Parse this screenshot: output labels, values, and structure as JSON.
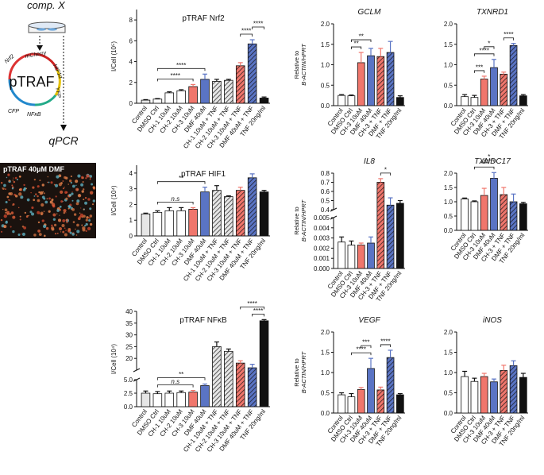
{
  "diagram": {
    "compound": "comp. X",
    "plasmid": "pTRAF",
    "nrf2": "Nrf2",
    "mcherry": "mCherry",
    "hif1": "HIF1α",
    "yfp": "YFP",
    "cfp": "CFP",
    "nfkb": "NFκB",
    "readout": "qPCR",
    "image_label": "pTRAF 40μM DMF"
  },
  "chart_data": [
    {
      "type": "bar",
      "title": "pTRAF Nrf2",
      "y_label": "I/Cell (10⁵)",
      "categories": [
        "Control",
        "DMSO Ctrl",
        "CH-1 10uM",
        "CH-2 10uM",
        "CH-3 10uM",
        "DMF 40uM",
        "CH-1 10uM + TNF",
        "CH-2 10uM + TNF",
        "CH-3 10uM + TNF",
        "DMF 40uM + TNF",
        "TNF 20ng/ml"
      ],
      "values": [
        0.3,
        0.4,
        1.0,
        1.2,
        1.6,
        2.3,
        2.1,
        2.2,
        3.6,
        5.7,
        0.5
      ],
      "errors": [
        0.05,
        0.05,
        0.1,
        0.1,
        0.2,
        0.5,
        0.2,
        0.1,
        0.3,
        0.4,
        0.1
      ],
      "colors": [
        "#e6e6e6",
        "#ffffff",
        "#ffffff",
        "#ffffff",
        "#f0766c",
        "#5a74c4",
        "#e6e6e6",
        "#e6e6e6",
        "#f0766c",
        "#5a74c4",
        "#111111"
      ],
      "hatched": [
        false,
        false,
        false,
        false,
        false,
        false,
        true,
        true,
        true,
        true,
        false
      ],
      "ylim": [
        0,
        9
      ],
      "yticks": [
        0,
        2,
        4,
        6,
        8
      ],
      "annotations": [
        {
          "label": "****",
          "from": 1,
          "to": 4
        },
        {
          "label": "****",
          "from": 1,
          "to": 5
        },
        {
          "label": "****",
          "from": 8,
          "to": 9
        },
        {
          "label": "****",
          "from": 9,
          "to": 10
        }
      ]
    },
    {
      "type": "bar",
      "title": "pTRAF HIF1",
      "y_label": "I/Cell (10⁴)",
      "categories": [
        "Control",
        "DMSO Ctrl",
        "CH-1 10uM",
        "CH-2 10uM",
        "CH-3 10uM",
        "DMF 40uM",
        "CH-1 10uM + TNF",
        "CH-2 10uM + TNF",
        "CH-3 10uM + TNF",
        "DMF 40uM + TNF",
        "TNF 20ng/ml"
      ],
      "values": [
        1.4,
        1.5,
        1.6,
        1.6,
        1.7,
        2.8,
        2.9,
        2.5,
        2.9,
        3.7,
        2.8
      ],
      "errors": [
        0.05,
        0.1,
        0.2,
        0.2,
        0.1,
        0.3,
        0.3,
        0.05,
        0.2,
        0.25,
        0.1
      ],
      "colors": [
        "#e6e6e6",
        "#ffffff",
        "#ffffff",
        "#ffffff",
        "#f0766c",
        "#5a74c4",
        "#e6e6e6",
        "#e6e6e6",
        "#f0766c",
        "#5a74c4",
        "#111111"
      ],
      "hatched": [
        false,
        false,
        false,
        false,
        false,
        false,
        true,
        true,
        true,
        true,
        false
      ],
      "ylim": [
        0,
        4.5
      ],
      "yticks": [
        0,
        1,
        2,
        3,
        4
      ],
      "annotations": [
        {
          "label": "n.s",
          "from": 1,
          "to": 4
        },
        {
          "label": "**",
          "from": 1,
          "to": 5
        }
      ]
    },
    {
      "type": "bar",
      "title": "pTRAF NFκB",
      "y_label": "I/Cell (10⁴)",
      "categories": [
        "Control",
        "DMSO Ctrl",
        "CH-1 10uM",
        "CH-2 10uM",
        "CH-3 10uM",
        "DMF 40uM",
        "CH-1 10uM + TNF",
        "CH-2 10uM + TNF",
        "CH-3 10uM + TNF",
        "DMF 40uM + TNF",
        "TNF 20ng/ml"
      ],
      "values": [
        2.5,
        2.4,
        2.5,
        2.6,
        2.7,
        3.9,
        25,
        23,
        18,
        16,
        36
      ],
      "errors": [
        0.4,
        0.4,
        0.4,
        0.3,
        0.3,
        0.3,
        2,
        1,
        1,
        1.5,
        0.5
      ],
      "colors": [
        "#e6e6e6",
        "#ffffff",
        "#ffffff",
        "#ffffff",
        "#f0766c",
        "#5a74c4",
        "#e6e6e6",
        "#e6e6e6",
        "#f0766c",
        "#5a74c4",
        "#111111"
      ],
      "hatched": [
        false,
        false,
        false,
        false,
        false,
        false,
        true,
        true,
        true,
        true,
        false
      ],
      "segments": [
        {
          "ylim": [
            0,
            5
          ],
          "yticks": [
            {
              "value": 0,
              "label": "0.0"
            },
            2.5,
            {
              "value": 5,
              "label": "5.0"
            }
          ]
        },
        {
          "ylim": [
            15,
            40
          ],
          "yticks": [
            20,
            25,
            30,
            35,
            40
          ]
        }
      ],
      "annotations": [
        {
          "label": "n.s",
          "from": 1,
          "to": 4
        },
        {
          "label": "**",
          "from": 1,
          "to": 5
        },
        {
          "label": "****",
          "from": 9,
          "to": 10
        },
        {
          "label": "****",
          "from": 8,
          "to": 10
        }
      ]
    },
    {
      "type": "bar",
      "title": "GCLM",
      "y_label": [
        "Relative to",
        "B-ACTIN/HPRT"
      ],
      "categories": [
        "Control",
        "DMSO Ctrl",
        "CH-3 10uM",
        "DMF 40uM",
        "CH-3 + TNF",
        "DMF + TNF",
        "TNF 20ng/ml"
      ],
      "values": [
        0.25,
        0.24,
        1.05,
        1.22,
        1.2,
        1.3,
        0.2
      ],
      "errors": [
        0.02,
        0.02,
        0.25,
        0.18,
        0.2,
        0.27,
        0.04
      ],
      "colors": [
        "#ffffff",
        "#ffffff",
        "#f0766c",
        "#5a74c4",
        "#f0766c",
        "#5a74c4",
        "#111111"
      ],
      "hatched": [
        false,
        false,
        false,
        false,
        true,
        true,
        false
      ],
      "ylim": [
        0,
        2
      ],
      "yticks": [
        {
          "value": 0,
          "label": "0.0"
        },
        0.5,
        {
          "value": 1,
          "label": "1.0"
        },
        1.5,
        {
          "value": 2,
          "label": "2.0"
        }
      ],
      "annotations": [
        {
          "label": "**",
          "from": 1,
          "to": 2
        },
        {
          "label": "**",
          "from": 1,
          "to": 3
        }
      ]
    },
    {
      "type": "bar",
      "title": "TXNRD1",
      "categories": [
        "Control",
        "DMSO Ctrl",
        "CH-3 10uM",
        "DMF 40uM",
        "CH-3 + TNF",
        "DMF + TNF",
        "TNF 20ng/ml"
      ],
      "values": [
        0.22,
        0.2,
        0.65,
        0.93,
        0.77,
        1.47,
        0.24
      ],
      "errors": [
        0.05,
        0.05,
        0.07,
        0.2,
        0.05,
        0.05,
        0.03
      ],
      "colors": [
        "#ffffff",
        "#ffffff",
        "#f0766c",
        "#5a74c4",
        "#f0766c",
        "#5a74c4",
        "#111111"
      ],
      "hatched": [
        false,
        false,
        false,
        false,
        true,
        true,
        false
      ],
      "ylim": [
        0,
        2
      ],
      "yticks": [
        {
          "value": 0,
          "label": "0.0"
        },
        0.5,
        {
          "value": 1,
          "label": "1.0"
        },
        1.5,
        {
          "value": 2,
          "label": "2.0"
        }
      ],
      "annotations": [
        {
          "label": "***",
          "from": 1,
          "to": 2
        },
        {
          "label": "****",
          "from": 1,
          "to": 3
        },
        {
          "label": "*",
          "from": 2,
          "to": 3
        },
        {
          "label": "****",
          "from": 4,
          "to": 5
        }
      ]
    },
    {
      "type": "bar",
      "title": "IL8",
      "y_label": [
        "Relative to",
        "B-ACTIN/HPRT"
      ],
      "categories": [
        "Control",
        "DMSO Ctrl",
        "CH-3 10uM",
        "DMF 40uM",
        "CH-3 + TNF",
        "DMF + TNF",
        "TNF 20ng/ml"
      ],
      "values": [
        0.0026,
        0.0023,
        0.0023,
        0.0025,
        0.7,
        0.45,
        0.47
      ],
      "errors": [
        0.0005,
        0.0004,
        0.0002,
        0.0006,
        0.04,
        0.08,
        0.03
      ],
      "colors": [
        "#ffffff",
        "#ffffff",
        "#f0766c",
        "#5a74c4",
        "#f0766c",
        "#5a74c4",
        "#111111"
      ],
      "hatched": [
        false,
        false,
        false,
        false,
        true,
        true,
        false
      ],
      "segments": [
        {
          "ylim": [
            0,
            0.005
          ],
          "yticks": [
            {
              "value": 0,
              "label": "0.000"
            },
            {
              "value": 0.001,
              "label": "0.001"
            },
            {
              "value": 0.002,
              "label": "0.002"
            },
            {
              "value": 0.003,
              "label": "0.003"
            },
            {
              "value": 0.004,
              "label": "0.004"
            },
            {
              "value": 0.005,
              "label": "0.005"
            }
          ]
        },
        {
          "ylim": [
            0.4,
            0.8
          ],
          "yticks": [
            0.4,
            0.5,
            0.6,
            0.7,
            0.8
          ]
        }
      ],
      "annotations": [
        {
          "label": "*",
          "from": 4,
          "to": 5
        }
      ]
    },
    {
      "type": "bar",
      "title": "TXNDC17",
      "categories": [
        "Control",
        "DMSO Ctrl",
        "CH-3 10uM",
        "DMF 40uM",
        "CH-3 + TNF",
        "DMF + TNF",
        "TNF 20ng/ml"
      ],
      "values": [
        1.1,
        1.0,
        1.22,
        1.82,
        1.25,
        1.0,
        0.93
      ],
      "errors": [
        0.03,
        0.03,
        0.25,
        0.2,
        0.25,
        0.27,
        0.05
      ],
      "colors": [
        "#ffffff",
        "#ffffff",
        "#f0766c",
        "#5a74c4",
        "#f0766c",
        "#5a74c4",
        "#111111"
      ],
      "hatched": [
        false,
        false,
        false,
        false,
        true,
        true,
        false
      ],
      "ylim": [
        0,
        2
      ],
      "yticks": [
        {
          "value": 0,
          "label": "0.0"
        },
        0.5,
        {
          "value": 1,
          "label": "1.0"
        },
        1.5,
        {
          "value": 2,
          "label": "2.0"
        }
      ],
      "annotations": [
        {
          "label": "***",
          "from": 1,
          "to": 3
        },
        {
          "label": "*",
          "from": 2,
          "to": 3
        }
      ]
    },
    {
      "type": "bar",
      "title": "VEGF",
      "y_label": [
        "Relative to",
        "B-ACTIN/HPRT"
      ],
      "categories": [
        "Control",
        "DMSO Ctrl",
        "CH-3 10uM",
        "DMF 40uM",
        "CH-3 + TNF",
        "DMF + TNF",
        "TNF 20ng/ml"
      ],
      "values": [
        0.45,
        0.4,
        0.58,
        1.1,
        0.57,
        1.37,
        0.45
      ],
      "errors": [
        0.05,
        0.08,
        0.05,
        0.25,
        0.07,
        0.18,
        0.03
      ],
      "colors": [
        "#ffffff",
        "#ffffff",
        "#f0766c",
        "#5a74c4",
        "#f0766c",
        "#5a74c4",
        "#111111"
      ],
      "hatched": [
        false,
        false,
        false,
        false,
        true,
        true,
        false
      ],
      "ylim": [
        0,
        2
      ],
      "yticks": [
        {
          "value": 0,
          "label": "0.0"
        },
        0.5,
        {
          "value": 1,
          "label": "1.0"
        },
        1.5,
        {
          "value": 2,
          "label": "2.0"
        }
      ],
      "annotations": [
        {
          "label": "****",
          "from": 1,
          "to": 3
        },
        {
          "label": "***",
          "from": 2,
          "to": 3
        },
        {
          "label": "****",
          "from": 4,
          "to": 5
        }
      ]
    },
    {
      "type": "bar",
      "title": "iNOS",
      "categories": [
        "Control",
        "DMSO Ctrl",
        "CH-3 10uM",
        "DMF 40uM",
        "CH-3 + TNF",
        "DMF + TNF",
        "TNF 20ng/ml"
      ],
      "values": [
        0.9,
        0.78,
        0.9,
        0.77,
        1.05,
        1.17,
        0.88
      ],
      "errors": [
        0.13,
        0.08,
        0.08,
        0.07,
        0.13,
        0.12,
        0.1
      ],
      "colors": [
        "#ffffff",
        "#ffffff",
        "#f0766c",
        "#5a74c4",
        "#f0766c",
        "#5a74c4",
        "#111111"
      ],
      "hatched": [
        false,
        false,
        false,
        false,
        true,
        true,
        false
      ],
      "ylim": [
        0,
        2
      ],
      "yticks": [
        {
          "value": 0,
          "label": "0.0"
        },
        0.5,
        {
          "value": 1,
          "label": "1.0"
        },
        1.5,
        {
          "value": 2,
          "label": "2.0"
        }
      ],
      "annotations": []
    }
  ]
}
